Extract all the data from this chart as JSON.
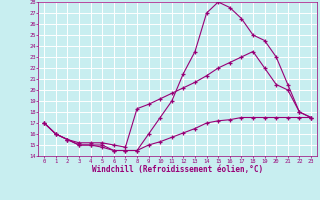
{
  "xlabel": "Windchill (Refroidissement éolien,°C)",
  "bg_color": "#c8eef0",
  "grid_color": "#ffffff",
  "line_color": "#990077",
  "xlim": [
    -0.5,
    23.5
  ],
  "ylim": [
    14,
    28
  ],
  "xticks": [
    0,
    1,
    2,
    3,
    4,
    5,
    6,
    7,
    8,
    9,
    10,
    11,
    12,
    13,
    14,
    15,
    16,
    17,
    18,
    19,
    20,
    21,
    22,
    23
  ],
  "yticks": [
    14,
    15,
    16,
    17,
    18,
    19,
    20,
    21,
    22,
    23,
    24,
    25,
    26,
    27,
    28
  ],
  "line1_x": [
    0,
    1,
    2,
    3,
    4,
    5,
    6,
    7,
    8,
    9,
    10,
    11,
    12,
    13,
    14,
    15,
    16,
    17,
    18,
    19,
    20,
    21,
    22,
    23
  ],
  "line1_y": [
    17,
    16,
    15.5,
    15,
    15,
    15,
    14.5,
    14.5,
    14.5,
    16,
    17.5,
    19,
    21.5,
    23.5,
    27,
    28,
    27.5,
    26.5,
    25,
    24.5,
    23,
    20.5,
    18,
    17.5
  ],
  "line2_x": [
    0,
    1,
    2,
    3,
    4,
    5,
    6,
    7,
    8,
    9,
    10,
    11,
    12,
    13,
    14,
    15,
    16,
    17,
    18,
    19,
    20,
    21,
    22,
    23
  ],
  "line2_y": [
    17,
    16,
    15.5,
    15.2,
    15.2,
    15.2,
    15.0,
    14.8,
    18.3,
    18.7,
    19.2,
    19.7,
    20.2,
    20.7,
    21.3,
    22,
    22.5,
    23,
    23.5,
    22,
    20.5,
    20,
    18,
    17.5
  ],
  "line3_x": [
    0,
    1,
    2,
    3,
    4,
    5,
    6,
    7,
    8,
    9,
    10,
    11,
    12,
    13,
    14,
    15,
    16,
    17,
    18,
    19,
    20,
    21,
    22,
    23
  ],
  "line3_y": [
    17,
    16,
    15.5,
    15,
    15,
    14.8,
    14.5,
    14.5,
    14.5,
    15.0,
    15.3,
    15.7,
    16.1,
    16.5,
    17.0,
    17.2,
    17.3,
    17.5,
    17.5,
    17.5,
    17.5,
    17.5,
    17.5,
    17.5
  ]
}
